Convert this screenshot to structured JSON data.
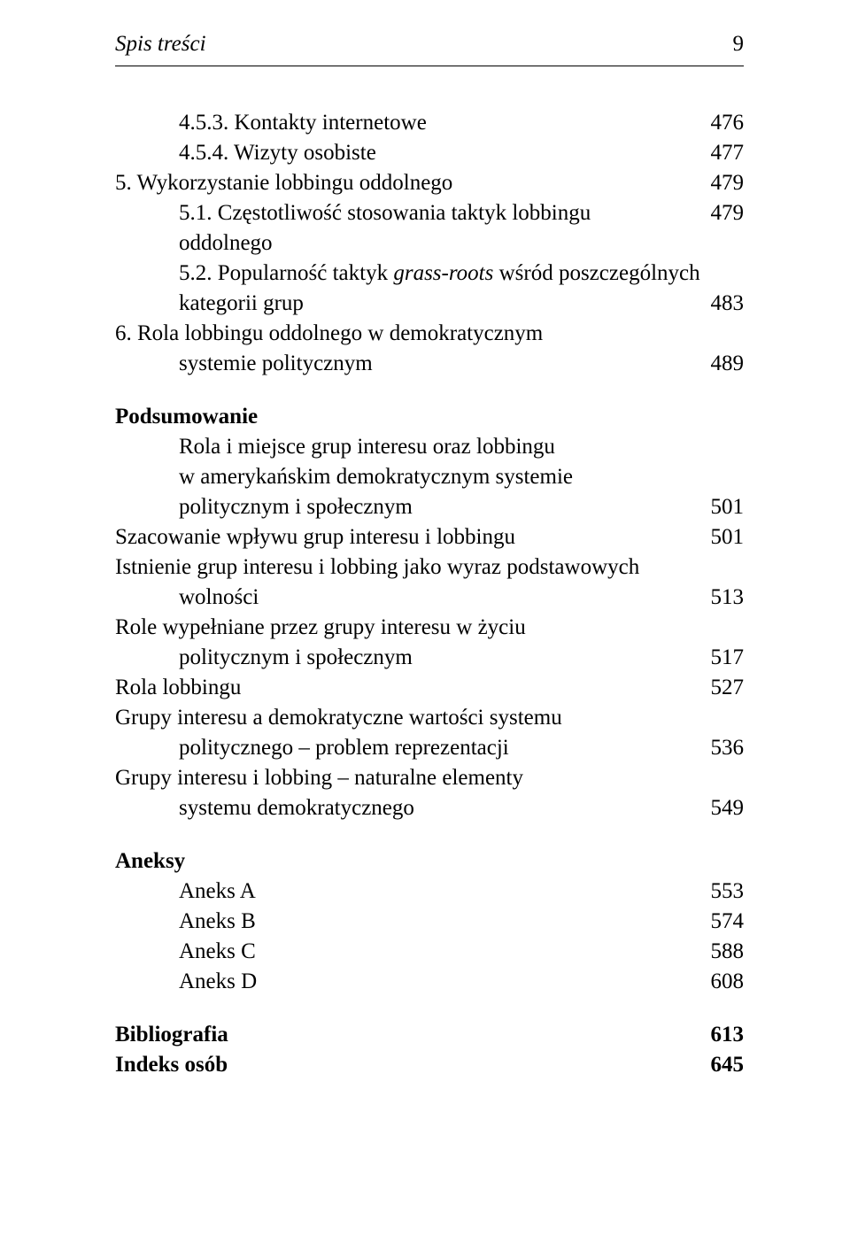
{
  "header": {
    "running_title": "Spis treści",
    "page_number": "9"
  },
  "entries": [
    {
      "label": "4.5.3. Kontakty internetowe",
      "page": "476",
      "style": "hang"
    },
    {
      "label": "4.5.4. Wizyty osobiste",
      "page": "477",
      "style": "hang"
    },
    {
      "label": "5. Wykorzystanie lobbingu oddolnego",
      "page": "479",
      "style": "indent1"
    },
    {
      "label": "5.1. Częstotliwość stosowania taktyk lobbingu oddolnego",
      "page": "479",
      "style": "hang"
    },
    {
      "label_prefix": "5.2. Popularność taktyk ",
      "label_italic": "grass-roots",
      "label_suffix": " wśród poszczególnych",
      "style": "hang",
      "wrap": "kategorii grup",
      "page": "483"
    },
    {
      "label": "6. Rola lobbingu oddolnego w demokratycznym",
      "style": "indent1",
      "wrap": "systemie politycznym",
      "page": "489"
    },
    {
      "gap": true
    },
    {
      "label": "Podsumowanie",
      "style": "indent1 bold"
    },
    {
      "label": "Rola i miejsce grup interesu oraz lobbingu",
      "style": "hang",
      "wrap": "w amerykańskim demokratycznym systemie",
      "wrap2": "politycznym i społecznym",
      "page": "501"
    },
    {
      "label": "Szacowanie wpływu grup interesu i lobbingu",
      "page": "501",
      "style": "indent1"
    },
    {
      "label": "Istnienie grup interesu i lobbing jako wyraz podstawowych",
      "style": "indent1",
      "wrap": "wolności",
      "page": "513"
    },
    {
      "label": "Role wypełniane przez grupy interesu w życiu",
      "style": "indent1",
      "wrap": "politycznym i społecznym",
      "page": "517"
    },
    {
      "label": "Rola lobbingu",
      "page": "527",
      "style": "indent1"
    },
    {
      "label": "Grupy interesu a demokratyczne wartości systemu",
      "style": "indent1",
      "wrap": "politycznego – problem reprezentacji",
      "page": "536"
    },
    {
      "label": "Grupy interesu i lobbing – naturalne elementy",
      "style": "indent1",
      "wrap": "systemu demokratycznego",
      "page": "549"
    },
    {
      "gap": true
    },
    {
      "label": "Aneksy",
      "style": "indent1 bold"
    },
    {
      "label": "Aneks A",
      "page": "553",
      "style": "hang"
    },
    {
      "label": "Aneks B",
      "page": "574",
      "style": "hang"
    },
    {
      "label": "Aneks C",
      "page": "588",
      "style": "hang"
    },
    {
      "label": "Aneks D",
      "page": "608",
      "style": "hang"
    },
    {
      "gap": true
    },
    {
      "label": "Bibliografia",
      "page": "613",
      "style": "indent1 bold"
    },
    {
      "label": "Indeks osób",
      "page": "645",
      "style": "indent1 bold"
    }
  ]
}
